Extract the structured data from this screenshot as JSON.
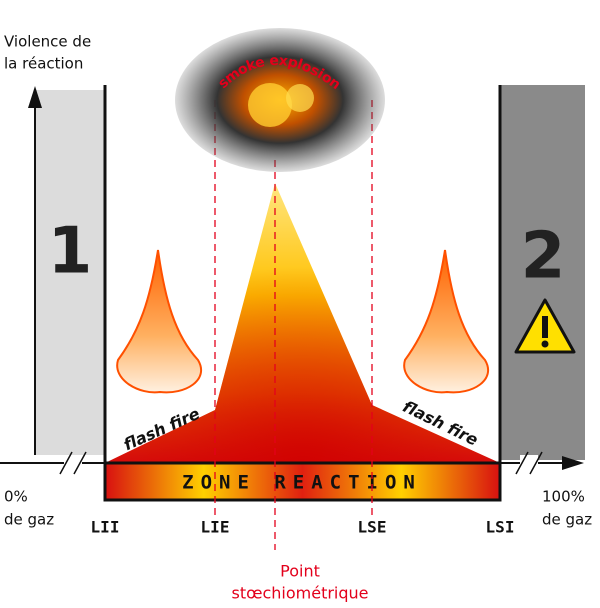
{
  "y_axis_label": [
    "Violence de",
    "la réaction"
  ],
  "explosion_label": "smoke explosion",
  "zones": [
    "1",
    "2"
  ],
  "flash_fire_labels": [
    "flash fire",
    "flash fire"
  ],
  "band_label": "ZONE REACTION",
  "x_start_label": [
    "0%",
    "de gaz"
  ],
  "x_end_label": [
    "100%",
    "de gaz"
  ],
  "limits": [
    "LII",
    "LIE",
    "LSE",
    "LSI"
  ],
  "stoichiometric_label": [
    "Point",
    "stœchiométrique"
  ]
}
